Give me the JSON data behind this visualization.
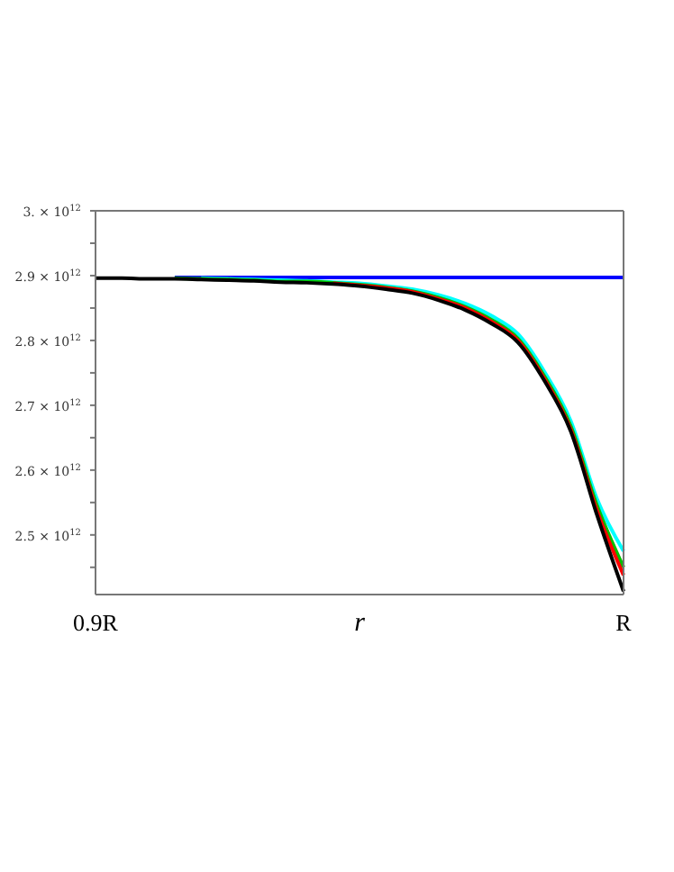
{
  "chart_data": {
    "type": "line",
    "xlabel": "r",
    "categories": [
      "0.9R",
      null,
      null,
      null,
      null,
      null,
      null,
      null,
      null,
      null,
      null,
      null,
      null,
      null,
      null,
      null,
      null,
      null,
      null,
      null,
      "R"
    ],
    "ylim": [
      2408000000000.0,
      3000000000000.0
    ],
    "yticks": [
      {
        "value": 2450000000000.0,
        "label": null
      },
      {
        "value": 2500000000000.0,
        "label": "2.5 × 10$^{12}$"
      },
      {
        "value": 2550000000000.0,
        "label": null
      },
      {
        "value": 2600000000000.0,
        "label": "2.6 × 10$^{12}$"
      },
      {
        "value": 2650000000000.0,
        "label": null
      },
      {
        "value": 2700000000000.0,
        "label": "2.7 × 10$^{12}$"
      },
      {
        "value": 2750000000000.0,
        "label": null
      },
      {
        "value": 2800000000000.0,
        "label": "2.8 × 10$^{12}$"
      },
      {
        "value": 2850000000000.0,
        "label": null
      },
      {
        "value": 2900000000000.0,
        "label": "2.9 × 10$^{12}$"
      },
      {
        "value": 2950000000000.0,
        "label": null
      },
      {
        "value": 3000000000000.0,
        "label": "3. × 10$^{12}$"
      }
    ],
    "marker": "none",
    "line_style": "solid",
    "series": [
      {
        "color": "#0000ff",
        "values": [
          null,
          null,
          null,
          2897000000000.0,
          2897000000000.0,
          2897000000000.0,
          2897000000000.0,
          2897000000000.0,
          2897000000000.0,
          2897000000000.0,
          2897000000000.0,
          2897000000000.0,
          2897000000000.0,
          2897000000000.0,
          2897000000000.0,
          2897000000000.0,
          2897000000000.0,
          2897000000000.0,
          2897000000000.0,
          2897000000000.0,
          2897000000000.0
        ]
      },
      {
        "color": "#00ffff",
        "values": [
          null,
          null,
          null,
          null,
          2896000000000.0,
          2895000000000.0,
          2894000000000.0,
          2893000000000.0,
          2892000000000.0,
          2890000000000.0,
          2888000000000.0,
          2884000000000.0,
          2879000000000.0,
          2870000000000.0,
          2857000000000.0,
          2838000000000.0,
          2810000000000.0,
          2752000000000.0,
          2676000000000.0,
          2555000000000.0,
          2475000000000.0
        ]
      },
      {
        "color": "#00c000",
        "values": [
          null,
          null,
          null,
          2896000000000.0,
          2895000000000.0,
          2894000000000.0,
          2893000000000.0,
          2891000000000.0,
          2891000000000.0,
          2889000000000.0,
          2886000000000.0,
          2882000000000.0,
          2876000000000.0,
          2866000000000.0,
          2852000000000.0,
          2832000000000.0,
          2803000000000.0,
          2745000000000.0,
          2668000000000.0,
          2545000000000.0,
          2450000000000.0
        ]
      },
      {
        "color": "#ff0000",
        "values": [
          null,
          null,
          null,
          null,
          null,
          null,
          null,
          null,
          null,
          2888000000000.0,
          2885000000000.0,
          2881000000000.0,
          2875000000000.0,
          2864000000000.0,
          2850000000000.0,
          2829000000000.0,
          2800000000000.0,
          2741000000000.0,
          2663000000000.0,
          2537000000000.0,
          2438000000000.0
        ]
      },
      {
        "color": "#000000",
        "values": [
          2896000000000.0,
          2896000000000.0,
          2895000000000.0,
          2895000000000.0,
          2894000000000.0,
          2893000000000.0,
          2892000000000.0,
          2890000000000.0,
          2889000000000.0,
          2887000000000.0,
          2884000000000.0,
          2879000000000.0,
          2873000000000.0,
          2862000000000.0,
          2847000000000.0,
          2826000000000.0,
          2797000000000.0,
          2738000000000.0,
          2660000000000.0,
          2530000000000.0,
          2413000000000.0
        ]
      }
    ]
  }
}
